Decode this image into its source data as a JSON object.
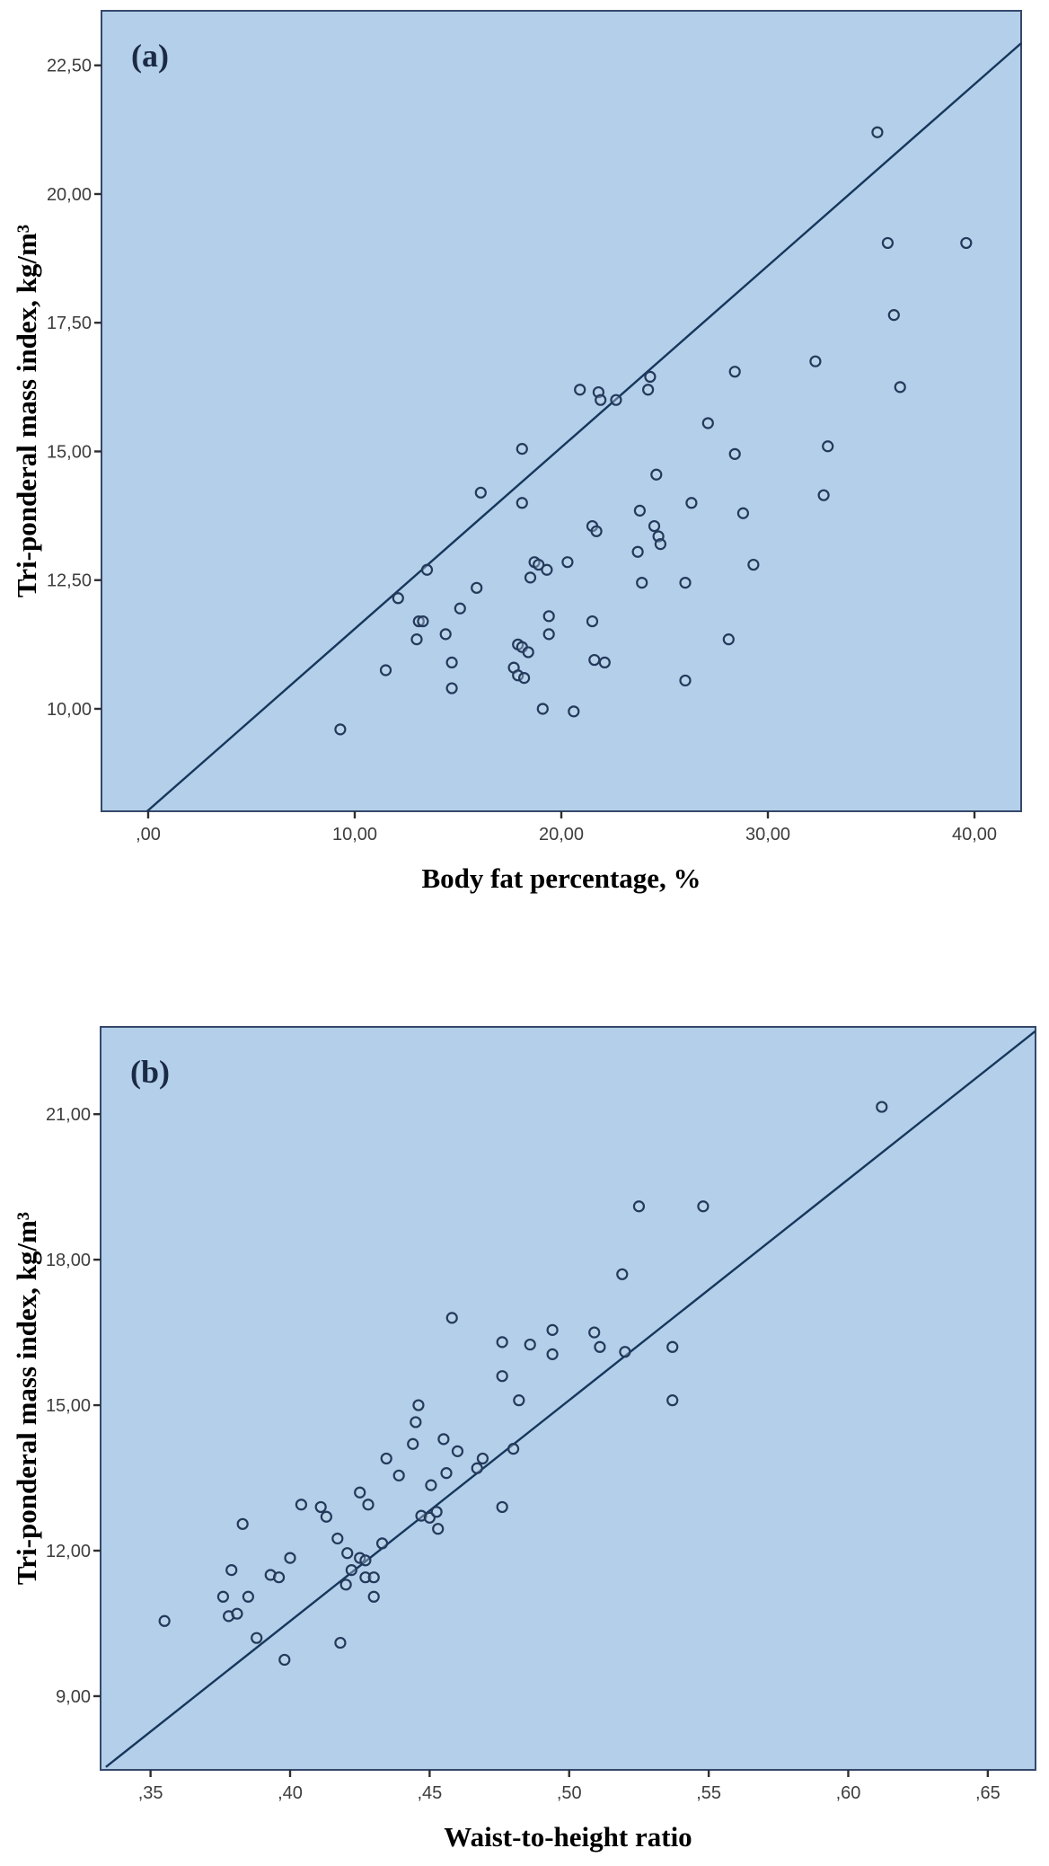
{
  "figure_title": "",
  "style": {
    "page_bg": "#ffffff",
    "plot_bg": "#b3cfe9",
    "frame_color": "#36486b",
    "line_color": "#16365c",
    "marker_stroke": "#24395b",
    "marker_fill": "#c6daef",
    "tick_color": "#2f2f2f",
    "tick_label_color": "#3d3d3d",
    "axis_title_color": "#000000",
    "panel_label_color": "#1b2a45"
  },
  "chart_data": [
    {
      "id": "a",
      "type": "scatter",
      "panel_label": "(a)",
      "xlabel": "Body fat percentage, %",
      "ylabel": "Tri-ponderal mass index, kg/m³",
      "xlim": [
        -2.26,
        42.26
      ],
      "ylim": [
        8.01,
        23.56
      ],
      "x_ticks": [
        0,
        10,
        20,
        30,
        40
      ],
      "x_tick_labels": [
        ",00",
        "10,00",
        "20,00",
        "30,00",
        "40,00"
      ],
      "y_ticks": [
        10,
        12.5,
        15,
        17.5,
        20,
        22.5
      ],
      "y_tick_labels": [
        "10,00",
        "12,50",
        "15,00",
        "17,50",
        "20,00",
        "22,50"
      ],
      "grid": false,
      "legend": "none",
      "identity_line": {
        "x1": -0.05,
        "y1": 8.01,
        "x2": 42.26,
        "y2": 22.93
      },
      "points": [
        [
          9.3,
          9.6
        ],
        [
          11.5,
          10.75
        ],
        [
          12.1,
          12.15
        ],
        [
          13.1,
          11.7
        ],
        [
          13.3,
          11.7
        ],
        [
          13.0,
          11.35
        ],
        [
          14.4,
          11.45
        ],
        [
          14.7,
          10.9
        ],
        [
          14.7,
          10.4
        ],
        [
          15.1,
          11.95
        ],
        [
          15.9,
          12.35
        ],
        [
          13.5,
          12.7
        ],
        [
          16.1,
          14.2
        ],
        [
          17.7,
          10.8
        ],
        [
          17.9,
          10.65
        ],
        [
          18.2,
          10.6
        ],
        [
          17.9,
          11.25
        ],
        [
          18.1,
          11.2
        ],
        [
          18.4,
          11.1
        ],
        [
          18.1,
          15.05
        ],
        [
          18.1,
          14.0
        ],
        [
          18.5,
          12.55
        ],
        [
          18.7,
          12.85
        ],
        [
          18.9,
          12.8
        ],
        [
          19.3,
          12.7
        ],
        [
          19.1,
          10.0
        ],
        [
          20.6,
          9.95
        ],
        [
          19.4,
          11.8
        ],
        [
          19.4,
          11.45
        ],
        [
          20.3,
          12.85
        ],
        [
          20.9,
          16.2
        ],
        [
          21.5,
          13.55
        ],
        [
          21.7,
          13.45
        ],
        [
          21.5,
          11.7
        ],
        [
          21.6,
          10.95
        ],
        [
          22.1,
          10.9
        ],
        [
          21.8,
          16.15
        ],
        [
          21.9,
          16.0
        ],
        [
          22.65,
          16.0
        ],
        [
          23.7,
          13.05
        ],
        [
          23.8,
          13.85
        ],
        [
          23.9,
          12.45
        ],
        [
          24.2,
          16.2
        ],
        [
          24.3,
          16.45
        ],
        [
          24.5,
          13.55
        ],
        [
          24.7,
          13.35
        ],
        [
          24.8,
          13.2
        ],
        [
          24.6,
          14.55
        ],
        [
          26.0,
          12.45
        ],
        [
          26.0,
          10.55
        ],
        [
          26.3,
          14.0
        ],
        [
          27.1,
          15.55
        ],
        [
          28.1,
          11.35
        ],
        [
          28.4,
          16.55
        ],
        [
          28.4,
          14.95
        ],
        [
          28.8,
          13.8
        ],
        [
          29.3,
          12.8
        ],
        [
          32.3,
          16.75
        ],
        [
          32.7,
          14.15
        ],
        [
          32.9,
          15.1
        ],
        [
          35.3,
          21.2
        ],
        [
          35.8,
          19.05
        ],
        [
          36.1,
          17.65
        ],
        [
          36.4,
          16.25
        ],
        [
          39.6,
          19.05
        ]
      ]
    },
    {
      "id": "b",
      "type": "scatter",
      "panel_label": "(b)",
      "xlabel": "Waist-to-height ratio",
      "ylabel": "Tri-ponderal mass index, kg/m³",
      "xlim": [
        0.3321,
        0.6671
      ],
      "ylim": [
        7.48,
        22.8
      ],
      "x_ticks": [
        0.35,
        0.4,
        0.45,
        0.5,
        0.55,
        0.6,
        0.65
      ],
      "x_tick_labels": [
        ",35",
        ",40",
        ",45",
        ",50",
        ",55",
        ",60",
        ",65"
      ],
      "y_ticks": [
        9,
        12,
        15,
        18,
        21
      ],
      "y_tick_labels": [
        "9,00",
        "12,00",
        "15,00",
        "18,00",
        "21,00"
      ],
      "grid": false,
      "legend": "none",
      "identity_line": {
        "x1": 0.334,
        "y1": 7.54,
        "x2": 0.667,
        "y2": 22.71
      },
      "points": [
        [
          0.612,
          21.15
        ],
        [
          0.525,
          19.1
        ],
        [
          0.548,
          19.1
        ],
        [
          0.519,
          17.7
        ],
        [
          0.458,
          16.8
        ],
        [
          0.476,
          16.3
        ],
        [
          0.486,
          16.25
        ],
        [
          0.494,
          16.55
        ],
        [
          0.494,
          16.05
        ],
        [
          0.509,
          16.5
        ],
        [
          0.511,
          16.2
        ],
        [
          0.52,
          16.1
        ],
        [
          0.537,
          16.2
        ],
        [
          0.537,
          15.1
        ],
        [
          0.476,
          15.6
        ],
        [
          0.482,
          15.1
        ],
        [
          0.446,
          15.0
        ],
        [
          0.445,
          14.65
        ],
        [
          0.444,
          14.2
        ],
        [
          0.455,
          14.3
        ],
        [
          0.46,
          14.05
        ],
        [
          0.4345,
          13.9
        ],
        [
          0.439,
          13.55
        ],
        [
          0.469,
          13.9
        ],
        [
          0.48,
          14.1
        ],
        [
          0.467,
          13.7
        ],
        [
          0.456,
          13.6
        ],
        [
          0.4505,
          13.35
        ],
        [
          0.425,
          13.2
        ],
        [
          0.428,
          12.95
        ],
        [
          0.404,
          12.95
        ],
        [
          0.411,
          12.9
        ],
        [
          0.413,
          12.7
        ],
        [
          0.447,
          12.72
        ],
        [
          0.45,
          12.68
        ],
        [
          0.4525,
          12.8
        ],
        [
          0.453,
          12.45
        ],
        [
          0.476,
          12.9
        ],
        [
          0.433,
          12.15
        ],
        [
          0.417,
          12.25
        ],
        [
          0.383,
          12.55
        ],
        [
          0.379,
          11.6
        ],
        [
          0.376,
          11.05
        ],
        [
          0.385,
          11.05
        ],
        [
          0.378,
          10.65
        ],
        [
          0.381,
          10.7
        ],
        [
          0.388,
          10.2
        ],
        [
          0.398,
          9.75
        ],
        [
          0.418,
          10.1
        ],
        [
          0.355,
          10.55
        ],
        [
          0.4205,
          11.95
        ],
        [
          0.425,
          11.85
        ],
        [
          0.427,
          11.8
        ],
        [
          0.422,
          11.6
        ],
        [
          0.427,
          11.45
        ],
        [
          0.43,
          11.45
        ],
        [
          0.42,
          11.3
        ],
        [
          0.4,
          11.85
        ],
        [
          0.393,
          11.5
        ],
        [
          0.396,
          11.45
        ],
        [
          0.43,
          11.05
        ]
      ]
    }
  ]
}
